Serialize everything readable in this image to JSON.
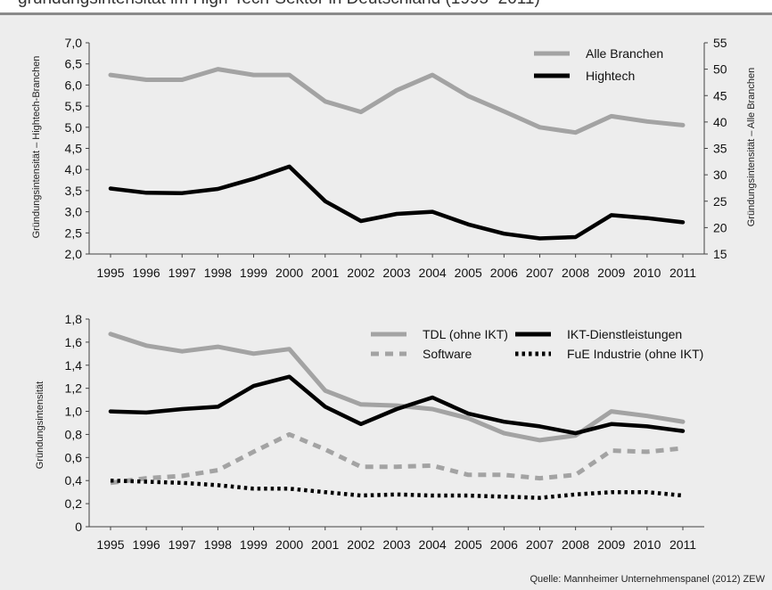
{
  "header": {
    "title_fragment": "gründungsintensität im High-Tech-Sektor in Deutschland (1995–2011)"
  },
  "source": "Quelle: Mannheimer Unternehmenspanel (2012) ZEW",
  "colors": {
    "grey": "#a3a3a3",
    "black": "#000000",
    "background": "#ededed"
  },
  "chart_data": [
    {
      "type": "line",
      "title": "",
      "x": [
        "1995",
        "1996",
        "1997",
        "1998",
        "1999",
        "2000",
        "2001",
        "2002",
        "2003",
        "2004",
        "2005",
        "2006",
        "2007",
        "2008",
        "2009",
        "2010",
        "2011"
      ],
      "ylabel": "Gründungsintensität – Hightech-Branchen",
      "ylabel_right": "Gründungsintensität – Alle Branchen",
      "ylim": [
        2.0,
        7.0
      ],
      "yticks": [
        "2,0",
        "2,5",
        "3,0",
        "3,5",
        "4,0",
        "4,5",
        "5,0",
        "5,5",
        "6,0",
        "6,5",
        "7,0"
      ],
      "ylim_right": [
        15,
        55
      ],
      "yticks_right": [
        "15",
        "20",
        "25",
        "30",
        "35",
        "40",
        "45",
        "50",
        "55"
      ],
      "grid": false,
      "legend_position": "top-right",
      "series": [
        {
          "name": "Alle Branchen",
          "axis": "right",
          "color": "#a3a3a3",
          "dash": "solid",
          "values": [
            48.9,
            48.0,
            48.0,
            50.0,
            48.9,
            48.9,
            43.9,
            41.9,
            46.0,
            48.9,
            44.9,
            42.0,
            39.0,
            38.0,
            41.1,
            40.1,
            39.4
          ]
        },
        {
          "name": "Hightech",
          "axis": "left",
          "color": "#000000",
          "dash": "solid",
          "values": [
            3.55,
            3.45,
            3.44,
            3.54,
            3.78,
            4.07,
            3.25,
            2.78,
            2.95,
            3.0,
            2.7,
            2.48,
            2.37,
            2.4,
            2.92,
            2.85,
            2.75
          ]
        }
      ]
    },
    {
      "type": "line",
      "title": "",
      "x": [
        "1995",
        "1996",
        "1997",
        "1998",
        "1999",
        "2000",
        "2001",
        "2002",
        "2003",
        "2004",
        "2005",
        "2006",
        "2007",
        "2008",
        "2009",
        "2010",
        "2011"
      ],
      "ylabel": "Gründungsintensität",
      "ylim": [
        0,
        1.8
      ],
      "yticks": [
        "0",
        "0,2",
        "0,4",
        "0,6",
        "0,8",
        "1,0",
        "1,2",
        "1,4",
        "1,6",
        "1,8"
      ],
      "grid": false,
      "legend_position": "top-right",
      "series": [
        {
          "name": "TDL (ohne IKT)",
          "color": "#a3a3a3",
          "dash": "solid",
          "values": [
            1.67,
            1.57,
            1.52,
            1.56,
            1.5,
            1.54,
            1.18,
            1.06,
            1.05,
            1.02,
            0.94,
            0.81,
            0.75,
            0.79,
            1.0,
            0.96,
            0.91
          ]
        },
        {
          "name": "IKT-Dienstleistungen",
          "color": "#000000",
          "dash": "solid",
          "values": [
            1.0,
            0.99,
            1.02,
            1.04,
            1.22,
            1.3,
            1.04,
            0.89,
            1.02,
            1.12,
            0.98,
            0.91,
            0.87,
            0.81,
            0.89,
            0.87,
            0.83
          ]
        },
        {
          "name": "Software",
          "color": "#a3a3a3",
          "dash": "dashed",
          "values": [
            0.38,
            0.42,
            0.44,
            0.49,
            0.65,
            0.8,
            0.67,
            0.52,
            0.52,
            0.53,
            0.45,
            0.45,
            0.42,
            0.45,
            0.66,
            0.65,
            0.68
          ]
        },
        {
          "name": "FuE Industrie (ohne IKT)",
          "color": "#000000",
          "dash": "dotted",
          "values": [
            0.4,
            0.39,
            0.38,
            0.36,
            0.33,
            0.33,
            0.3,
            0.27,
            0.28,
            0.27,
            0.27,
            0.26,
            0.25,
            0.28,
            0.3,
            0.3,
            0.27
          ]
        }
      ]
    }
  ]
}
